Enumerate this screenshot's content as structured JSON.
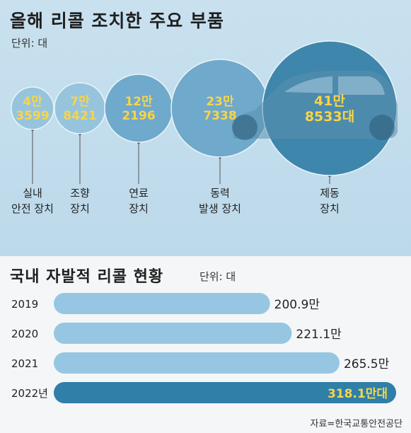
{
  "top": {
    "title": "올해 리콜 조치한 주요 부품",
    "unit": "단위: 대"
  },
  "bottom": {
    "title": "국내 자발적 리콜 현황",
    "unit": "단위: 대"
  },
  "source": "자료=한국교통안전공단",
  "colors": {
    "bubble_light": "#97c4dd",
    "bubble_mid": "#6fa9cb",
    "bubble_dark": "#3f86ac",
    "bubble_text": "#f6d54a",
    "bar_light": "#97c6e2",
    "bar_dark": "#2f7fa8"
  },
  "chart_data": [
    {
      "type": "bubble",
      "items": [
        {
          "value_text": [
            "4만",
            "3599"
          ],
          "label": [
            "실내",
            "안전 장치"
          ],
          "value": 43599
        },
        {
          "value_text": [
            "7만",
            "8421"
          ],
          "label": [
            "조향",
            "장치"
          ],
          "value": 78421
        },
        {
          "value_text": [
            "12만",
            "2196"
          ],
          "label": [
            "연료",
            "장치"
          ],
          "value": 122196
        },
        {
          "value_text": [
            "23만",
            "7338"
          ],
          "label": [
            "동력",
            "발생 장치"
          ],
          "value": 237338
        },
        {
          "value_text": [
            "41만",
            "8533대"
          ],
          "label": [
            "제동",
            "장치"
          ],
          "value": 418533
        }
      ]
    },
    {
      "type": "bar",
      "orientation": "horizontal",
      "categories": [
        "2019",
        "2020",
        "2021",
        "2022년"
      ],
      "values": [
        200.9,
        221.1,
        265.5,
        318.1
      ],
      "value_labels": [
        "200.9만",
        "221.1만",
        "265.5만",
        "318.1만대"
      ]
    }
  ]
}
